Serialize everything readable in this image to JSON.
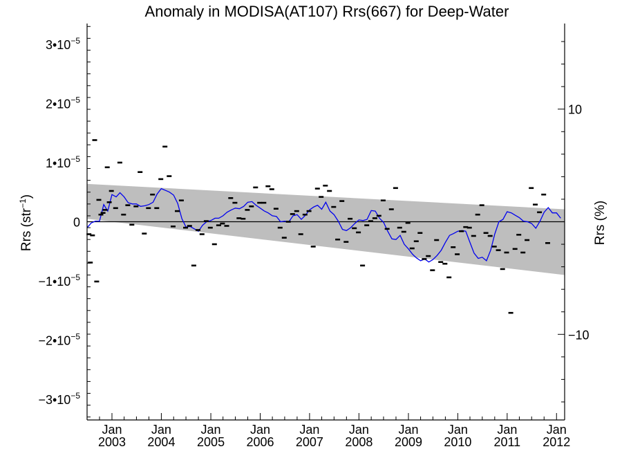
{
  "chart_data": {
    "type": "scatter",
    "title": "Anomaly in MODISA(AT107) Rrs(667) for Deep-Water",
    "ylabel": "Rrs (str⁻¹)",
    "y2label": "Rrs (%)",
    "xlim": [
      "2002-07-01",
      "2012-03-01"
    ],
    "ylim": [
      -3.35e-05,
      3.35e-05
    ],
    "y2lim": [
      -17.6,
      17.6
    ],
    "grid": false,
    "y_ticks": [
      {
        "value": 3e-05,
        "label": "3•10",
        "exp": "−5"
      },
      {
        "value": 2e-05,
        "label": "2•10",
        "exp": "−5"
      },
      {
        "value": 1e-05,
        "label": "1•10",
        "exp": "−5"
      },
      {
        "value": 0,
        "label": "0",
        "exp": ""
      },
      {
        "value": -1e-05,
        "label": "−1•10",
        "exp": "−5"
      },
      {
        "value": -2e-05,
        "label": "−2•10",
        "exp": "−5"
      },
      {
        "value": -3e-05,
        "label": "−3•10",
        "exp": "−5"
      }
    ],
    "y2_ticks": [
      {
        "value": 10,
        "label": "10"
      },
      {
        "value": -10,
        "label": "−10"
      }
    ],
    "x_ticks": [
      {
        "date": "2003-01-01",
        "month": "Jan",
        "year": "2003"
      },
      {
        "date": "2004-01-01",
        "month": "Jan",
        "year": "2004"
      },
      {
        "date": "2005-01-01",
        "month": "Jan",
        "year": "2005"
      },
      {
        "date": "2006-01-01",
        "month": "Jan",
        "year": "2006"
      },
      {
        "date": "2007-01-01",
        "month": "Jan",
        "year": "2007"
      },
      {
        "date": "2008-01-01",
        "month": "Jan",
        "year": "2008"
      },
      {
        "date": "2009-01-01",
        "month": "Jan",
        "year": "2009"
      },
      {
        "date": "2010-01-01",
        "month": "Jan",
        "year": "2010"
      },
      {
        "date": "2011-01-01",
        "month": "Jan",
        "year": "2011"
      },
      {
        "date": "2012-01-01",
        "month": "Jan",
        "year": "2012"
      }
    ],
    "band": {
      "x": [
        "2002-07-01",
        "2012-03-01"
      ],
      "upper": [
        6.4e-06,
        2.1e-06
      ],
      "lower": [
        5e-07,
        -9e-06
      ],
      "color": "#bebebe"
    },
    "zero_line": 0,
    "series": [
      {
        "kind": "markers",
        "color": "#000000",
        "points": [
          [
            "2002-07-15",
            -2.1e-06
          ],
          [
            "2002-07-25",
            -6.9e-06
          ],
          [
            "2002-08-10",
            -2.3e-06
          ],
          [
            "2002-08-26",
            1.38e-05
          ],
          [
            "2002-09-10",
            -1.01e-05
          ],
          [
            "2002-09-26",
            3.7e-06
          ],
          [
            "2002-10-11",
            1.2e-06
          ],
          [
            "2002-10-27",
            1.5e-06
          ],
          [
            "2002-11-11",
            2e-06
          ],
          [
            "2002-11-27",
            9.2e-06
          ],
          [
            "2002-12-12",
            3.3e-06
          ],
          [
            "2002-12-28",
            5.2e-06
          ],
          [
            "2003-01-28",
            2.3e-06
          ],
          [
            "2003-02-28",
            1e-05
          ],
          [
            "2003-03-28",
            1.2e-06
          ],
          [
            "2003-04-28",
            2.8e-06
          ],
          [
            "2003-05-28",
            -5e-07
          ],
          [
            "2003-06-28",
            2.6e-06
          ],
          [
            "2003-07-28",
            8.4e-06
          ],
          [
            "2003-08-28",
            -2e-06
          ],
          [
            "2003-09-28",
            2.3e-06
          ],
          [
            "2003-10-28",
            4.6e-06
          ],
          [
            "2003-11-28",
            2.3e-06
          ],
          [
            "2003-12-28",
            7.2e-06
          ],
          [
            "2004-01-28",
            1.27e-05
          ],
          [
            "2004-02-28",
            7.7e-06
          ],
          [
            "2004-03-28",
            -8e-07
          ],
          [
            "2004-04-28",
            1.8e-06
          ],
          [
            "2004-05-28",
            3.6e-06
          ],
          [
            "2004-06-28",
            -1e-06
          ],
          [
            "2004-07-28",
            -7e-07
          ],
          [
            "2004-08-28",
            -7.4e-06
          ],
          [
            "2004-09-28",
            -1.4e-06
          ],
          [
            "2004-10-28",
            -2.1e-06
          ],
          [
            "2004-11-28",
            1e-07
          ],
          [
            "2004-12-28",
            -1e-06
          ],
          [
            "2005-01-28",
            -3.8e-06
          ],
          [
            "2005-02-28",
            -6e-07
          ],
          [
            "2005-03-28",
            -3e-07
          ],
          [
            "2005-04-28",
            -7e-07
          ],
          [
            "2005-05-28",
            4e-06
          ],
          [
            "2005-06-28",
            3.2e-06
          ],
          [
            "2005-07-28",
            6e-07
          ],
          [
            "2005-08-28",
            5e-07
          ],
          [
            "2005-09-28",
            2e-06
          ],
          [
            "2005-10-28",
            2.6e-06
          ],
          [
            "2005-11-28",
            5.8e-06
          ],
          [
            "2005-12-28",
            3.2e-06
          ],
          [
            "2006-01-28",
            3.2e-06
          ],
          [
            "2006-02-28",
            6e-06
          ],
          [
            "2006-03-28",
            5.5e-06
          ],
          [
            "2006-04-28",
            2.2e-06
          ],
          [
            "2006-05-28",
            -1e-06
          ],
          [
            "2006-06-28",
            -2.7e-06
          ],
          [
            "2006-07-28",
            0.0
          ],
          [
            "2006-08-28",
            1.3e-06
          ],
          [
            "2006-09-28",
            1.8e-06
          ],
          [
            "2006-10-28",
            -2.1e-06
          ],
          [
            "2006-11-28",
            1.2e-06
          ],
          [
            "2006-12-28",
            1.8e-06
          ],
          [
            "2007-01-28",
            -4.2e-06
          ],
          [
            "2007-02-28",
            5.6e-06
          ],
          [
            "2007-03-28",
            4.2e-06
          ],
          [
            "2007-04-28",
            6.1e-06
          ],
          [
            "2007-05-28",
            5.2e-06
          ],
          [
            "2007-06-28",
            2.5e-06
          ],
          [
            "2007-07-28",
            -3e-06
          ],
          [
            "2007-08-28",
            3.5e-06
          ],
          [
            "2007-09-28",
            -3.4e-06
          ],
          [
            "2007-10-28",
            5e-07
          ],
          [
            "2007-11-28",
            -1.1e-06
          ],
          [
            "2007-12-28",
            -1.8e-06
          ],
          [
            "2008-01-28",
            -7.4e-06
          ],
          [
            "2008-02-28",
            -6e-07
          ],
          [
            "2008-03-28",
            1e-07
          ],
          [
            "2008-04-28",
            6e-07
          ],
          [
            "2008-05-28",
            1e-06
          ],
          [
            "2008-06-28",
            3.6e-06
          ],
          [
            "2008-07-28",
            -1.2e-06
          ],
          [
            "2008-08-28",
            2.1e-06
          ],
          [
            "2008-09-28",
            5.7e-06
          ],
          [
            "2008-10-28",
            -1e-06
          ],
          [
            "2008-11-28",
            -1.7e-06
          ],
          [
            "2008-12-28",
            -2e-07
          ],
          [
            "2009-01-28",
            -4.5e-06
          ],
          [
            "2009-02-28",
            -3.3e-06
          ],
          [
            "2009-03-28",
            -1.9e-06
          ],
          [
            "2009-04-28",
            -6.3e-06
          ],
          [
            "2009-05-28",
            -5.8e-06
          ],
          [
            "2009-06-28",
            -8.2e-06
          ],
          [
            "2009-07-28",
            -3.1e-06
          ],
          [
            "2009-08-28",
            -6.8e-06
          ],
          [
            "2009-09-28",
            -7.1e-06
          ],
          [
            "2009-10-28",
            -9.4e-06
          ],
          [
            "2009-11-28",
            -4.3e-06
          ],
          [
            "2009-12-28",
            -5.5e-06
          ],
          [
            "2010-01-28",
            -1.6e-06
          ],
          [
            "2010-02-28",
            -9e-07
          ],
          [
            "2010-03-28",
            -1e-06
          ],
          [
            "2010-04-28",
            -2.4e-06
          ],
          [
            "2010-05-28",
            1.2e-06
          ],
          [
            "2010-06-28",
            2.8e-06
          ],
          [
            "2010-07-28",
            -1.9e-06
          ],
          [
            "2010-08-28",
            -2.4e-06
          ],
          [
            "2010-09-28",
            -4.2e-06
          ],
          [
            "2010-10-28",
            -4.8e-06
          ],
          [
            "2010-11-28",
            -8e-06
          ],
          [
            "2010-12-28",
            -5.2e-06
          ],
          [
            "2011-01-28",
            -1.54e-05
          ],
          [
            "2011-02-28",
            -4.6e-06
          ],
          [
            "2011-03-28",
            -2.2e-06
          ],
          [
            "2011-04-28",
            -5.2e-06
          ],
          [
            "2011-05-28",
            -3.1e-06
          ],
          [
            "2011-06-28",
            5.7e-06
          ],
          [
            "2011-07-28",
            2.9e-06
          ],
          [
            "2011-08-28",
            1.6e-06
          ],
          [
            "2011-09-28",
            4.6e-06
          ],
          [
            "2011-10-28",
            -3.6e-06
          ]
        ]
      },
      {
        "kind": "line",
        "color": "#0000ee",
        "points": [
          [
            "2002-07-01",
            -1e-06
          ],
          [
            "2002-08-01",
            -2e-07
          ],
          [
            "2002-09-01",
            1e-07
          ],
          [
            "2002-10-01",
            1e-07
          ],
          [
            "2002-11-01",
            2.9e-06
          ],
          [
            "2002-12-01",
            1.8e-06
          ],
          [
            "2003-01-01",
            4.6e-06
          ],
          [
            "2003-02-01",
            4.2e-06
          ],
          [
            "2003-03-01",
            4.9e-06
          ],
          [
            "2003-04-01",
            4.2e-06
          ],
          [
            "2003-05-01",
            3.2e-06
          ],
          [
            "2003-06-01",
            3e-06
          ],
          [
            "2003-07-01",
            3e-06
          ],
          [
            "2003-08-01",
            2.6e-06
          ],
          [
            "2003-09-01",
            2.7e-06
          ],
          [
            "2003-10-01",
            2.9e-06
          ],
          [
            "2003-11-01",
            3.3e-06
          ],
          [
            "2003-12-01",
            4.7e-06
          ],
          [
            "2004-01-01",
            5.6e-06
          ],
          [
            "2004-02-01",
            5.3e-06
          ],
          [
            "2004-03-01",
            5e-06
          ],
          [
            "2004-04-01",
            4.5e-06
          ],
          [
            "2004-05-01",
            3.1e-06
          ],
          [
            "2004-06-01",
            5e-07
          ],
          [
            "2004-07-01",
            -9e-07
          ],
          [
            "2004-08-01",
            -8e-07
          ],
          [
            "2004-09-01",
            -1.2e-06
          ],
          [
            "2004-10-01",
            -1.6e-06
          ],
          [
            "2004-11-01",
            -6e-07
          ],
          [
            "2004-12-01",
            0.0
          ],
          [
            "2005-01-01",
            2e-07
          ],
          [
            "2005-02-01",
            6e-07
          ],
          [
            "2005-03-01",
            6e-07
          ],
          [
            "2005-04-01",
            1e-06
          ],
          [
            "2005-05-01",
            1.6e-06
          ],
          [
            "2005-06-01",
            2e-06
          ],
          [
            "2005-07-01",
            2.3e-06
          ],
          [
            "2005-08-01",
            2.2e-06
          ],
          [
            "2005-09-01",
            2.6e-06
          ],
          [
            "2005-10-01",
            3.3e-06
          ],
          [
            "2005-11-01",
            3.4e-06
          ],
          [
            "2005-12-01",
            2.8e-06
          ],
          [
            "2006-01-01",
            2.3e-06
          ],
          [
            "2006-02-01",
            1.8e-06
          ],
          [
            "2006-03-01",
            1.5e-06
          ],
          [
            "2006-04-01",
            1e-06
          ],
          [
            "2006-05-01",
            9e-07
          ],
          [
            "2006-06-01",
            0.0
          ],
          [
            "2006-07-01",
            1e-07
          ],
          [
            "2006-08-01",
            0.0
          ],
          [
            "2006-09-01",
            1e-06
          ],
          [
            "2006-10-01",
            1.2e-06
          ],
          [
            "2006-11-01",
            4e-07
          ],
          [
            "2006-12-01",
            1.1e-06
          ],
          [
            "2007-01-01",
            2e-06
          ],
          [
            "2007-02-01",
            2.5e-06
          ],
          [
            "2007-03-01",
            2.8e-06
          ],
          [
            "2007-04-01",
            2.1e-06
          ],
          [
            "2007-05-01",
            3.3e-06
          ],
          [
            "2007-06-01",
            1.8e-06
          ],
          [
            "2007-07-01",
            1.2e-06
          ],
          [
            "2007-08-01",
            1e-07
          ],
          [
            "2007-09-01",
            -1.3e-06
          ],
          [
            "2007-10-01",
            -1.5e-06
          ],
          [
            "2007-11-01",
            -1e-06
          ],
          [
            "2007-12-01",
            -3e-07
          ],
          [
            "2008-01-01",
            3e-07
          ],
          [
            "2008-02-01",
            2e-07
          ],
          [
            "2008-03-01",
            4e-07
          ],
          [
            "2008-04-01",
            1.9e-06
          ],
          [
            "2008-05-01",
            1.8e-06
          ],
          [
            "2008-06-01",
            6e-07
          ],
          [
            "2008-07-01",
            -1e-07
          ],
          [
            "2008-08-01",
            -1.6e-06
          ],
          [
            "2008-09-01",
            -2.9e-06
          ],
          [
            "2008-10-01",
            -3e-06
          ],
          [
            "2008-11-01",
            -2.3e-06
          ],
          [
            "2008-12-01",
            -3.8e-06
          ],
          [
            "2009-01-01",
            -4.6e-06
          ],
          [
            "2009-02-01",
            -5.5e-06
          ],
          [
            "2009-03-01",
            -6.1e-06
          ],
          [
            "2009-04-01",
            -6.6e-06
          ],
          [
            "2009-05-01",
            -6.3e-06
          ],
          [
            "2009-06-01",
            -6.8e-06
          ],
          [
            "2009-07-01",
            -6.4e-06
          ],
          [
            "2009-08-01",
            -5.7e-06
          ],
          [
            "2009-09-01",
            -4.8e-06
          ],
          [
            "2009-10-01",
            -3.5e-06
          ],
          [
            "2009-11-01",
            -2.3e-06
          ],
          [
            "2009-12-01",
            -2e-06
          ],
          [
            "2010-01-01",
            -1.6e-06
          ],
          [
            "2010-02-01",
            -1.5e-06
          ],
          [
            "2010-03-01",
            -1.6e-06
          ],
          [
            "2010-04-01",
            -3.5e-06
          ],
          [
            "2010-05-01",
            -5.3e-06
          ],
          [
            "2010-06-01",
            -6.2e-06
          ],
          [
            "2010-07-01",
            -6e-06
          ],
          [
            "2010-08-01",
            -6.6e-06
          ],
          [
            "2010-09-01",
            -4.8e-06
          ],
          [
            "2010-10-01",
            -2.1e-06
          ],
          [
            "2010-11-01",
            0.0
          ],
          [
            "2010-12-01",
            4e-07
          ],
          [
            "2011-01-01",
            1.7e-06
          ],
          [
            "2011-02-01",
            1.5e-06
          ],
          [
            "2011-03-01",
            1.1e-06
          ],
          [
            "2011-04-01",
            7e-07
          ],
          [
            "2011-05-01",
            1e-07
          ],
          [
            "2011-06-01",
            0.0
          ],
          [
            "2011-07-01",
            -3e-07
          ],
          [
            "2011-08-01",
            -1.1e-06
          ],
          [
            "2011-09-01",
            1e-07
          ],
          [
            "2011-10-01",
            1.6e-06
          ],
          [
            "2011-11-01",
            2.4e-06
          ],
          [
            "2011-12-01",
            1.5e-06
          ],
          [
            "2012-01-01",
            1.5e-06
          ],
          [
            "2012-02-01",
            6e-07
          ]
        ]
      }
    ]
  }
}
